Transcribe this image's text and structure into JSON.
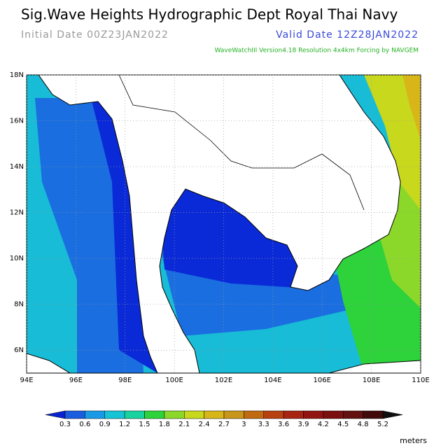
{
  "header": {
    "title": "Sig.Wave Heights Hydrographic Dept Royal Thai Navy",
    "initial_date": "Initial Date 00Z23JAN2022",
    "valid_date": "Valid Date 12Z28JAN2022",
    "subtitle": "WaveWatchIII Version4.18 Resolution 4x4km Forcing by NAVGEM"
  },
  "map": {
    "lon_range": [
      94,
      110
    ],
    "lat_range": [
      5,
      18
    ],
    "lon_ticks": [
      {
        "value": 94,
        "label": "94E"
      },
      {
        "value": 96,
        "label": "96E"
      },
      {
        "value": 98,
        "label": "98E"
      },
      {
        "value": 100,
        "label": "100E"
      },
      {
        "value": 102,
        "label": "102E"
      },
      {
        "value": 104,
        "label": "104E"
      },
      {
        "value": 106,
        "label": "106E"
      },
      {
        "value": 108,
        "label": "108E"
      },
      {
        "value": 110,
        "label": "110E"
      }
    ],
    "lat_ticks": [
      {
        "value": 6,
        "label": "6N"
      },
      {
        "value": 8,
        "label": "8N"
      },
      {
        "value": 10,
        "label": "10N"
      },
      {
        "value": 12,
        "label": "12N"
      },
      {
        "value": 14,
        "label": "14N"
      },
      {
        "value": 16,
        "label": "16N"
      },
      {
        "value": 18,
        "label": "18N"
      }
    ]
  },
  "colorbar": {
    "levels": [
      0.3,
      0.6,
      0.9,
      1.2,
      1.5,
      1.8,
      2.1,
      2.4,
      2.7,
      3,
      3.3,
      3.6,
      3.9,
      4.2,
      4.5,
      4.8,
      5.2
    ],
    "colors": [
      "#0a22d0",
      "#1a5ee0",
      "#1a9ae6",
      "#16c4d6",
      "#18d2a0",
      "#2ed23a",
      "#8cd82a",
      "#c8d81c",
      "#d8b61a",
      "#c8961a",
      "#c06a12",
      "#b84010",
      "#a82412",
      "#921412",
      "#7a1010",
      "#621010",
      "#420a0a",
      "#101010"
    ],
    "unit": "meters"
  }
}
